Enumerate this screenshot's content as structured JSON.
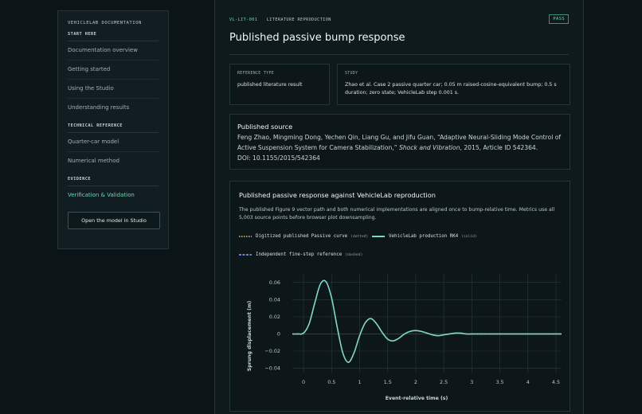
{
  "sidebar": {
    "title": "VEHICLELAB DOCUMENTATION",
    "sections": [
      {
        "heading": "START HERE",
        "items": [
          "Documentation overview",
          "Getting started",
          "Using the Studio",
          "Understanding results"
        ]
      },
      {
        "heading": "TECHNICAL REFERENCE",
        "items": [
          "Quarter-car model",
          "Numerical method"
        ]
      },
      {
        "heading": "EVIDENCE",
        "items": [
          "Verification & Validation"
        ]
      }
    ],
    "button_label": "Open the model in Studio"
  },
  "header": {
    "id": "VL-LIT-001",
    "category": "LITERATURE REPRODUCTION",
    "status": "PASS",
    "title": "Published passive bump response"
  },
  "reference_type": {
    "label": "REFERENCE TYPE",
    "value": "published literature result"
  },
  "study": {
    "label": "STUDY",
    "value": "Zhao et al. Case 2 passive quarter car; 0.05 m raised-cosine-equivalent bump; 0.5 s duration; zero state; VehicleLab step 0.001 s."
  },
  "source": {
    "heading": "Published source",
    "authors": "Feng Zhao, Mingming Dong, Yechen Qin, Liang Gu, and Jifu Guan, “Adaptive Neural-Sliding Mode Control of Active Suspension System for Camera Stabilization,”",
    "journal": "Shock and Vibration",
    "details": ", 2015, Article ID 542364.",
    "doi": "DOI: 10.1155/2015/542364"
  },
  "plot": {
    "heading": "Published passive response against VehicleLab reproduction",
    "description": "The published Figure 9 vector path and both numerical implementations are aligned once to bump-relative time. Metrics use all 5,003 source points before browser plot downsampling.",
    "legend": [
      {
        "label": "Digitized published Passive curve",
        "note": "(dotted)",
        "color": "#e8c46a"
      },
      {
        "label": "VehicleLab production RK4",
        "note": "(solid)",
        "color": "#7fd6c6"
      },
      {
        "label": "Independent fine-step reference",
        "note": "(dashed)",
        "color": "#8fa6ff"
      }
    ]
  },
  "chart_data": {
    "type": "line",
    "xlabel": "Event-relative time (s)",
    "ylabel": "Sprung displacement (m)",
    "xlim": [
      -0.2,
      4.6
    ],
    "ylim": [
      -0.045,
      0.07
    ],
    "x_ticks": [
      0,
      0.5,
      1,
      1.5,
      2,
      2.5,
      3,
      3.5,
      4,
      4.5
    ],
    "y_ticks": [
      -0.04,
      -0.02,
      0,
      0.02,
      0.04,
      0.06
    ],
    "y_tick_labels": [
      "−0.04",
      "−0.02",
      "0",
      "0.02",
      "0.04",
      "0.06"
    ],
    "grid": true,
    "series": [
      {
        "name": "VehicleLab production RK4",
        "x": [
          -0.2,
          -0.1,
          0,
          0.1,
          0.2,
          0.3,
          0.4,
          0.5,
          0.6,
          0.7,
          0.8,
          0.9,
          1.0,
          1.1,
          1.2,
          1.3,
          1.4,
          1.5,
          1.6,
          1.7,
          1.8,
          1.9,
          2.0,
          2.1,
          2.2,
          2.3,
          2.4,
          2.5,
          2.6,
          2.7,
          2.8,
          2.9,
          3.0,
          3.2,
          3.4,
          3.6,
          3.8,
          4.0,
          4.2,
          4.4,
          4.6
        ],
        "y": [
          0,
          0,
          0.001,
          0.012,
          0.036,
          0.058,
          0.061,
          0.042,
          0.008,
          -0.022,
          -0.033,
          -0.022,
          -0.002,
          0.013,
          0.018,
          0.012,
          0.002,
          -0.006,
          -0.008,
          -0.005,
          0.0,
          0.003,
          0.004,
          0.003,
          0.001,
          -0.001,
          -0.002,
          -0.001,
          0.0,
          0.001,
          0.001,
          0.0,
          0.0,
          0.0,
          0.0,
          0.0,
          0.0,
          0.0,
          0.0,
          0.0,
          0.0
        ]
      }
    ]
  }
}
